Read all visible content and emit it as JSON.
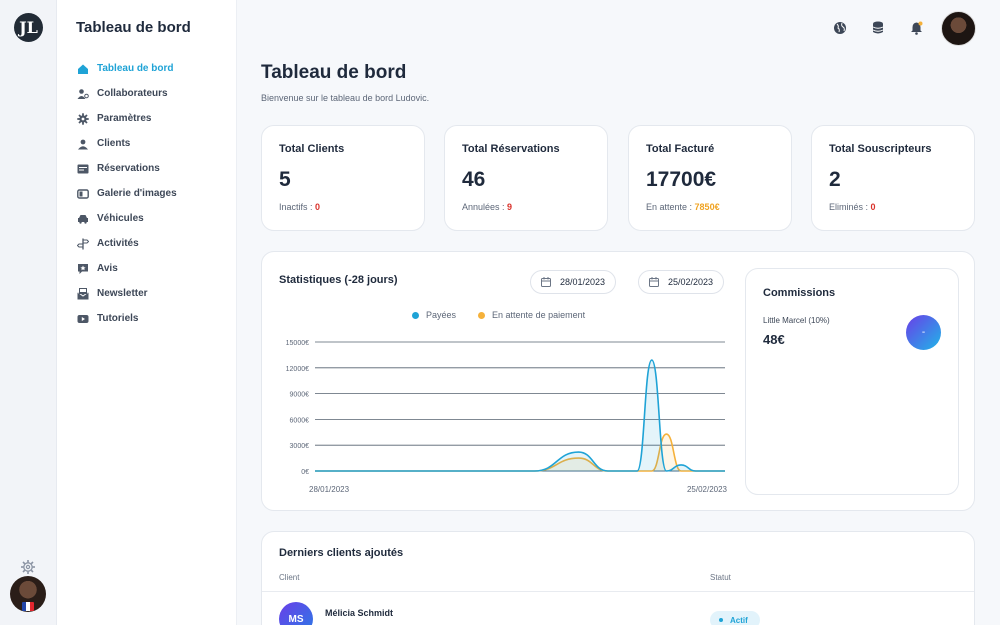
{
  "rail": {
    "logo_text": "JL"
  },
  "sidebar": {
    "title": "Tableau de bord",
    "items": [
      {
        "label": "Tableau de bord",
        "icon": "home-icon",
        "active": true
      },
      {
        "label": "Collaborateurs",
        "icon": "users-icon"
      },
      {
        "label": "Paramètres",
        "icon": "gear-icon"
      },
      {
        "label": "Clients",
        "icon": "clients-icon"
      },
      {
        "label": "Réservations",
        "icon": "reservations-icon"
      },
      {
        "label": "Galerie d'images",
        "icon": "gallery-icon"
      },
      {
        "label": "Véhicules",
        "icon": "car-icon"
      },
      {
        "label": "Activités",
        "icon": "signpost-icon"
      },
      {
        "label": "Avis",
        "icon": "review-icon"
      },
      {
        "label": "Newsletter",
        "icon": "newsletter-icon"
      },
      {
        "label": "Tutoriels",
        "icon": "video-icon"
      }
    ]
  },
  "header": {
    "icons": [
      "globe-icon",
      "database-icon",
      "bell-icon"
    ]
  },
  "page": {
    "title": "Tableau de bord",
    "subtitle": "Bienvenue sur le tableau de bord Ludovic."
  },
  "stats": [
    {
      "title": "Total Clients",
      "value": "5",
      "sub_label": "Inactifs : ",
      "sub_value": "0",
      "sub_color": "#d9312a"
    },
    {
      "title": "Total Réservations",
      "value": "46",
      "sub_label": "Annulées : ",
      "sub_value": "9",
      "sub_color": "#d9312a"
    },
    {
      "title": "Total Facturé",
      "value": "17700€",
      "sub_label": "En attente : ",
      "sub_value": "7850€",
      "sub_color": "#f0a322"
    },
    {
      "title": "Total Souscripteurs",
      "value": "2",
      "sub_label": "Eliminés : ",
      "sub_value": "0",
      "sub_color": "#d9312a"
    }
  ],
  "statistics": {
    "title": "Statistiques (-28 jours)",
    "date_from": "28/01/2023",
    "date_to": "25/02/2023"
  },
  "chart_data": {
    "type": "area",
    "x_start_label": "28/01/2023",
    "x_end_label": "25/02/2023",
    "y_ticks": [
      "0€",
      "3000€",
      "6000€",
      "9000€",
      "12000€",
      "15000€"
    ],
    "ylim": [
      0,
      15000
    ],
    "x": [
      0,
      5,
      10,
      15,
      18,
      20,
      22,
      23,
      24,
      25,
      26,
      28
    ],
    "series": [
      {
        "name": "Payées",
        "color": "#1fa3d6",
        "values": [
          0,
          0,
          0,
          0,
          2200,
          0,
          0,
          12900,
          0,
          700,
          0,
          0
        ]
      },
      {
        "name": "En attente de paiement",
        "color": "#f5b13a",
        "values": [
          0,
          0,
          0,
          0,
          1500,
          0,
          0,
          0,
          4300,
          0,
          0,
          0
        ]
      }
    ]
  },
  "commissions": {
    "title": "Commissions",
    "name": "Little Marcel (10%)",
    "amount": "48€",
    "badge": "-"
  },
  "clients": {
    "title": "Derniers clients ajoutés",
    "col_client": "Client",
    "col_status": "Statut",
    "rows": [
      {
        "initials": "MS",
        "name": "Mélicia Schmidt",
        "status": "Actif"
      }
    ]
  }
}
